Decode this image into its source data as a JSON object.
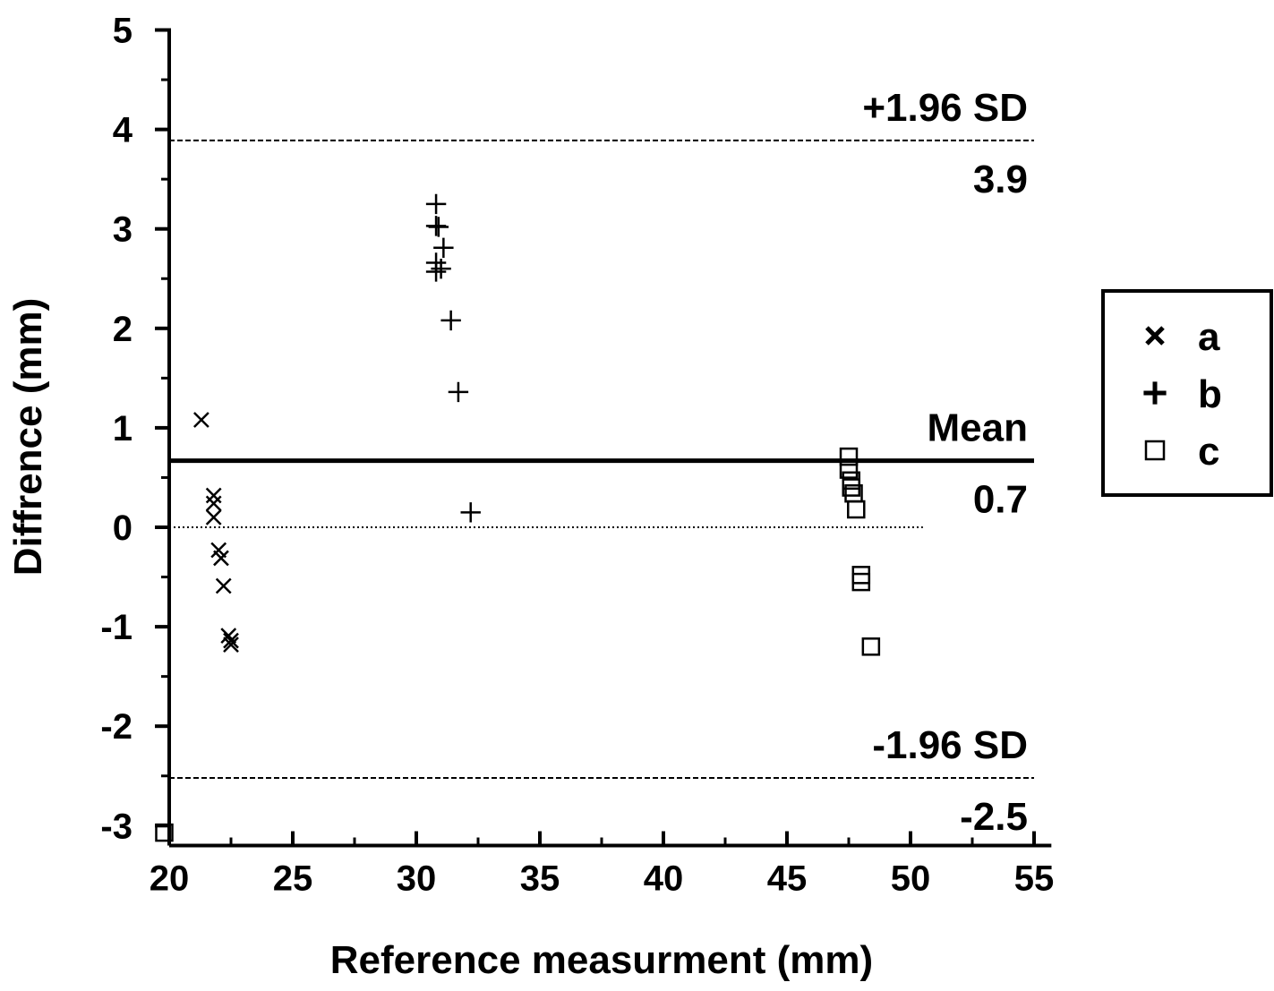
{
  "chart_data": {
    "type": "scatter",
    "xlabel": "Reference measurment (mm)",
    "ylabel": "Diffrence (mm)",
    "xlim": [
      20,
      55.7
    ],
    "ylim": [
      -3.2,
      5
    ],
    "xticks": [
      "20",
      "25",
      "30",
      "35",
      "40",
      "45",
      "50",
      "55"
    ],
    "yticks": [
      "-3",
      "-2",
      "-1",
      "0",
      "1",
      "2",
      "3",
      "4",
      "5"
    ],
    "grid": false,
    "legend_position": "right",
    "series": [
      {
        "name": "a",
        "marker": "x",
        "points": [
          [
            21.3,
            1.08
          ],
          [
            21.8,
            0.32
          ],
          [
            21.8,
            0.24
          ],
          [
            21.8,
            0.1
          ],
          [
            22.0,
            -0.23
          ],
          [
            22.1,
            -0.31
          ],
          [
            22.2,
            -0.59
          ],
          [
            22.4,
            -1.09
          ],
          [
            22.5,
            -1.14
          ],
          [
            22.5,
            -1.18
          ]
        ]
      },
      {
        "name": "b",
        "marker": "+",
        "points": [
          [
            30.8,
            3.25
          ],
          [
            30.8,
            3.03
          ],
          [
            30.9,
            3.02
          ],
          [
            31.1,
            2.81
          ],
          [
            30.8,
            2.66
          ],
          [
            30.8,
            2.57
          ],
          [
            31.0,
            2.6
          ],
          [
            31.4,
            2.08
          ],
          [
            31.7,
            1.36
          ],
          [
            32.2,
            0.15
          ]
        ]
      },
      {
        "name": "c",
        "marker": "square",
        "points": [
          [
            47.5,
            0.71
          ],
          [
            47.5,
            0.58
          ],
          [
            47.6,
            0.47
          ],
          [
            47.6,
            0.4
          ],
          [
            47.7,
            0.34
          ],
          [
            47.8,
            0.18
          ],
          [
            48.0,
            -0.48
          ],
          [
            48.0,
            -0.55
          ],
          [
            48.4,
            -1.2
          ],
          [
            19.8,
            -3.07
          ]
        ]
      }
    ],
    "reference_lines": [
      {
        "label": "+1.96 SD",
        "value_label": "3.9",
        "y": 3.89,
        "style": "dashed"
      },
      {
        "label": "Mean",
        "value_label": "0.7",
        "y": 0.67,
        "style": "solid"
      },
      {
        "label": "-1.96 SD",
        "value_label": "-2.5",
        "y": -2.52,
        "style": "dashed"
      },
      {
        "label": "",
        "value_label": "",
        "y": 0,
        "style": "dotted"
      }
    ]
  }
}
